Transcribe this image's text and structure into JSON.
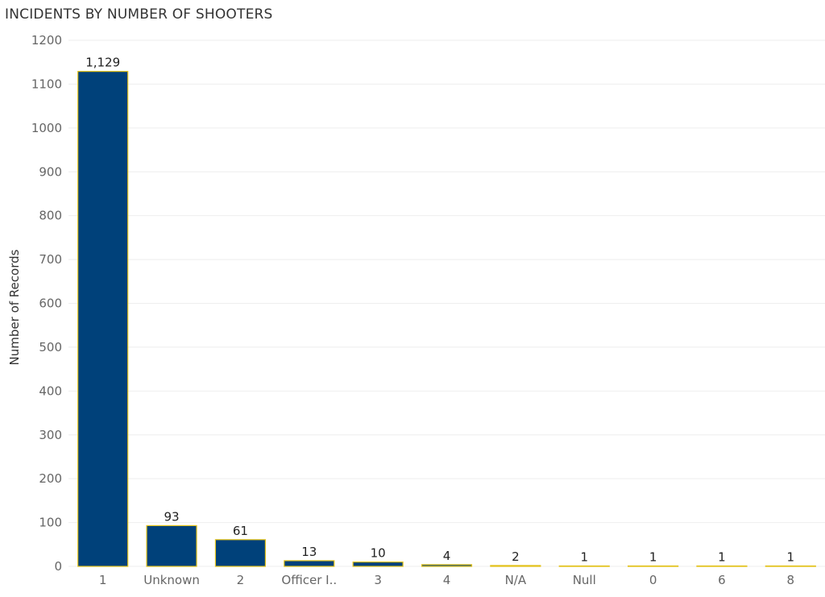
{
  "chart_data": {
    "type": "bar",
    "title": "INCIDENTS BY NUMBER OF SHOOTERS",
    "xlabel": "",
    "ylabel": "Number of Records",
    "categories": [
      "1",
      "Unknown",
      "2",
      "Officer I..",
      "3",
      "4",
      "N/A",
      "Null",
      "0",
      "6",
      "8"
    ],
    "values": [
      1129,
      93,
      61,
      13,
      10,
      4,
      2,
      1,
      1,
      1,
      1
    ],
    "data_labels": [
      "1,129",
      "93",
      "61",
      "13",
      "10",
      "4",
      "2",
      "1",
      "1",
      "1",
      "1"
    ],
    "ylim": [
      0,
      1200
    ],
    "yticks": [
      0,
      100,
      200,
      300,
      400,
      500,
      600,
      700,
      800,
      900,
      1000,
      1100,
      1200
    ],
    "grid": true,
    "colors": {
      "bar_fill": "#00417a",
      "bar_stroke": "#e3c21c",
      "grid": "#eeeeee"
    }
  }
}
